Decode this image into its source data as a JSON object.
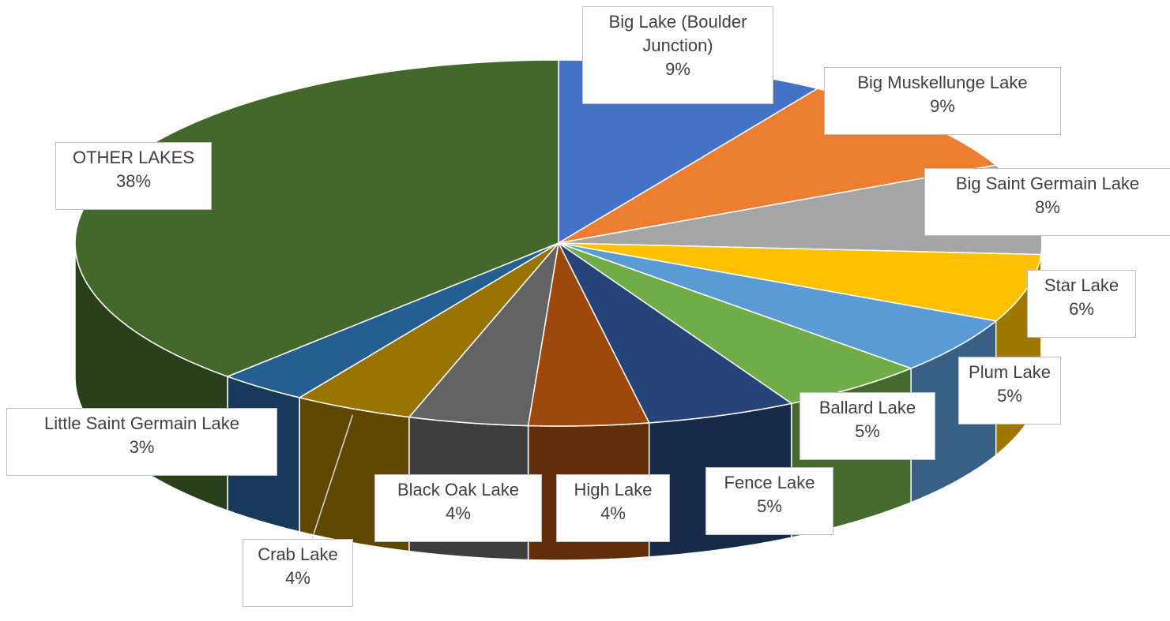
{
  "chart_data": {
    "type": "pie",
    "variant": "3d",
    "title": "",
    "show_legend": false,
    "label_style": "category name and percentage in bordered callout boxes",
    "slices": [
      {
        "name": "Big Lake (Boulder Junction)",
        "label_lines": [
          "Big Lake (Boulder",
          "Junction)"
        ],
        "percent_label": "9%",
        "value": 9,
        "color": "#4472C4"
      },
      {
        "name": "Big Muskellunge Lake",
        "label_lines": [
          "Big Muskellunge Lake"
        ],
        "percent_label": "9%",
        "value": 9,
        "color": "#ED7D31"
      },
      {
        "name": "Big Saint Germain Lake",
        "label_lines": [
          "Big Saint Germain Lake"
        ],
        "percent_label": "8%",
        "value": 8,
        "color": "#A5A5A5"
      },
      {
        "name": "Star Lake",
        "label_lines": [
          "Star Lake"
        ],
        "percent_label": "6%",
        "value": 6,
        "color": "#FFC000"
      },
      {
        "name": "Plum Lake",
        "label_lines": [
          "Plum Lake"
        ],
        "percent_label": "5%",
        "value": 5,
        "color": "#5B9BD5"
      },
      {
        "name": "Ballard Lake",
        "label_lines": [
          "Ballard Lake"
        ],
        "percent_label": "5%",
        "value": 5,
        "color": "#70AD47"
      },
      {
        "name": "Fence Lake",
        "label_lines": [
          "Fence Lake"
        ],
        "percent_label": "5%",
        "value": 5,
        "color": "#264478"
      },
      {
        "name": "High Lake",
        "label_lines": [
          "High Lake"
        ],
        "percent_label": "4%",
        "value": 4,
        "color": "#9E480E"
      },
      {
        "name": "Black Oak Lake",
        "label_lines": [
          "Black Oak Lake"
        ],
        "percent_label": "4%",
        "value": 4,
        "color": "#636363"
      },
      {
        "name": "Crab Lake",
        "label_lines": [
          "Crab Lake"
        ],
        "percent_label": "4%",
        "value": 4,
        "color": "#997300"
      },
      {
        "name": "Little Saint Germain Lake",
        "label_lines": [
          "Little Saint Germain Lake"
        ],
        "percent_label": "3%",
        "value": 3,
        "color": "#255E91"
      },
      {
        "name": "OTHER LAKES",
        "label_lines": [
          "OTHER LAKES"
        ],
        "percent_label": "38%",
        "value": 38,
        "color": "#43682B"
      }
    ]
  }
}
